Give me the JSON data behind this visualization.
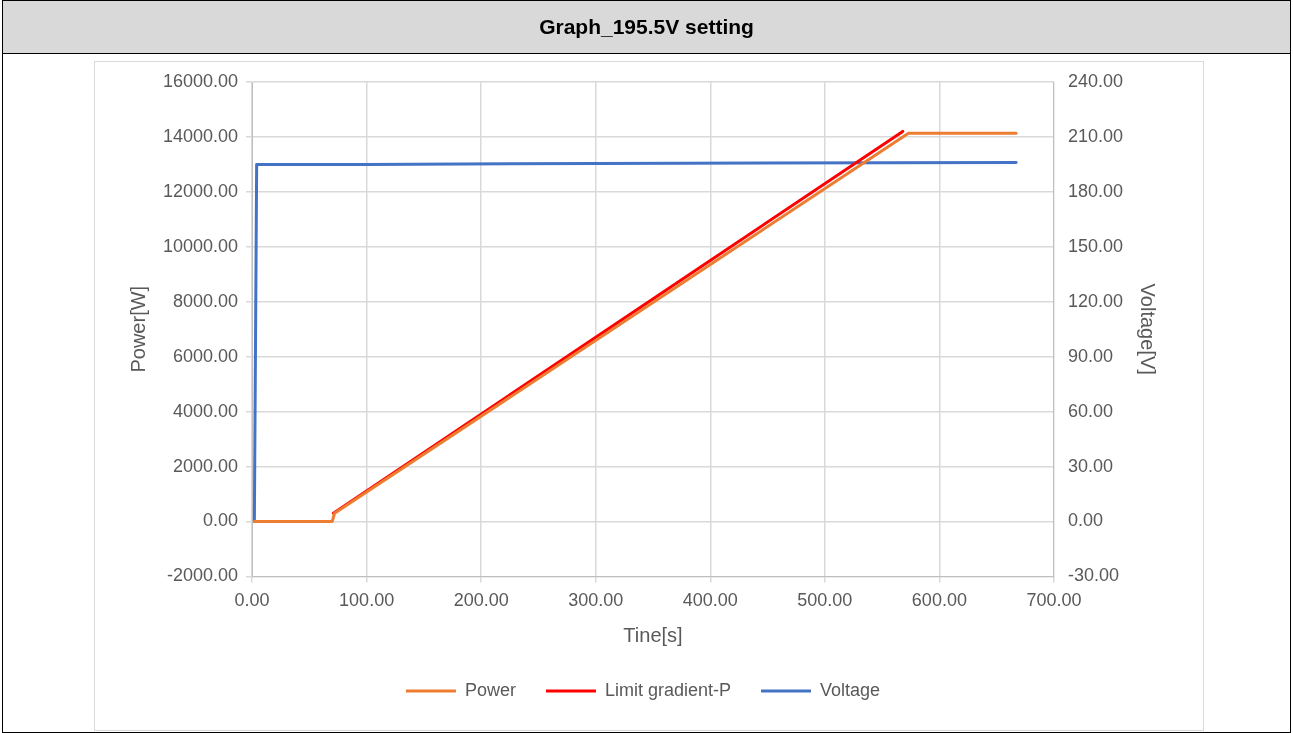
{
  "chart_data": {
    "type": "line",
    "title": "Graph_195.5V setting",
    "xlabel": "Tine[s]",
    "ylabel": "Power[W]",
    "y2label": "Voltage[V]",
    "xlim": [
      0,
      700
    ],
    "xticks": [
      {
        "value": 0,
        "label": "0.00"
      },
      {
        "value": 100,
        "label": "100.00"
      },
      {
        "value": 200,
        "label": "200.00"
      },
      {
        "value": 300,
        "label": "300.00"
      },
      {
        "value": 400,
        "label": "400.00"
      },
      {
        "value": 500,
        "label": "500.00"
      },
      {
        "value": 600,
        "label": "600.00"
      },
      {
        "value": 700,
        "label": "700.00"
      }
    ],
    "ylim": [
      -2000,
      16000
    ],
    "yticks": [
      {
        "value": -2000,
        "label": "-2000.00"
      },
      {
        "value": 0,
        "label": "0.00"
      },
      {
        "value": 2000,
        "label": "2000.00"
      },
      {
        "value": 4000,
        "label": "4000.00"
      },
      {
        "value": 6000,
        "label": "6000.00"
      },
      {
        "value": 8000,
        "label": "8000.00"
      },
      {
        "value": 10000,
        "label": "10000.00"
      },
      {
        "value": 12000,
        "label": "12000.00"
      },
      {
        "value": 14000,
        "label": "14000.00"
      },
      {
        "value": 16000,
        "label": "16000.00"
      }
    ],
    "y2lim": [
      -30,
      240
    ],
    "y2ticks": [
      {
        "value": -30,
        "label": "-30.00"
      },
      {
        "value": 0,
        "label": "0.00"
      },
      {
        "value": 30,
        "label": "30.00"
      },
      {
        "value": 60,
        "label": "60.00"
      },
      {
        "value": 90,
        "label": "90.00"
      },
      {
        "value": 120,
        "label": "120.00"
      },
      {
        "value": 150,
        "label": "150.00"
      },
      {
        "value": 180,
        "label": "180.00"
      },
      {
        "value": 210,
        "label": "210.00"
      },
      {
        "value": 240,
        "label": "240.00"
      }
    ],
    "series": [
      {
        "name": "Power",
        "color": "#ed7d31",
        "x": [
          2,
          70,
          72,
          573,
          667
        ],
        "values": [
          0,
          0,
          300,
          14130,
          14130
        ]
      },
      {
        "name": "Limit gradient-P",
        "color": "#ff0000",
        "x": [
          71,
          568
        ],
        "values": [
          300,
          14200
        ]
      },
      {
        "name": "Voltage",
        "color": "#4472c4",
        "axis": "y2",
        "x": [
          2,
          4,
          100,
          300,
          667
        ],
        "values": [
          0,
          195,
          195,
          195.5,
          196
        ]
      }
    ],
    "grid": true,
    "legend": "bottom",
    "marker": "none",
    "line_style": "solid"
  }
}
